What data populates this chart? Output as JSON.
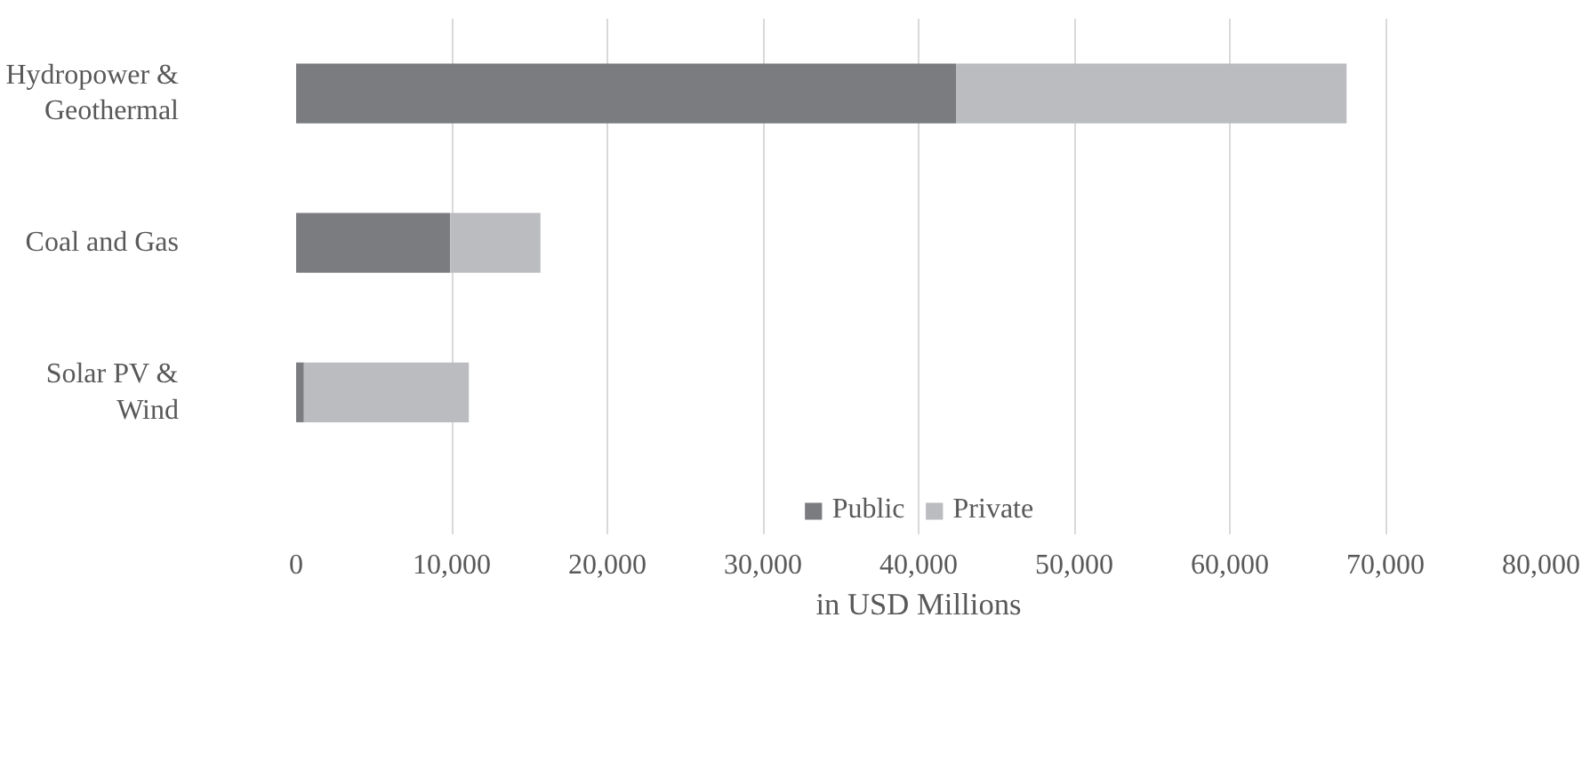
{
  "chart_data": {
    "type": "bar",
    "orientation": "horizontal",
    "stacked": true,
    "categories": [
      "Hydropower &\nGeothermal",
      "Coal and Gas",
      "Solar PV &\nWind"
    ],
    "series": [
      {
        "name": "Public",
        "color": "#7b7c80",
        "values": [
          42400,
          9900,
          500
        ]
      },
      {
        "name": "Private",
        "color": "#bbbcc0",
        "values": [
          25100,
          5800,
          10600
        ]
      }
    ],
    "xlabel": "in USD Millions",
    "xlim": [
      0,
      80000
    ],
    "xticks": [
      {
        "value": 0,
        "label": "0"
      },
      {
        "value": 10000,
        "label": "10,000"
      },
      {
        "value": 20000,
        "label": "20,000"
      },
      {
        "value": 30000,
        "label": "30,000"
      },
      {
        "value": 40000,
        "label": "40,000"
      },
      {
        "value": 50000,
        "label": "50,000"
      },
      {
        "value": 60000,
        "label": "60,000"
      },
      {
        "value": 70000,
        "label": "70,000"
      },
      {
        "value": 80000,
        "label": "80,000"
      }
    ],
    "grid": "x",
    "legend": "bottom"
  }
}
